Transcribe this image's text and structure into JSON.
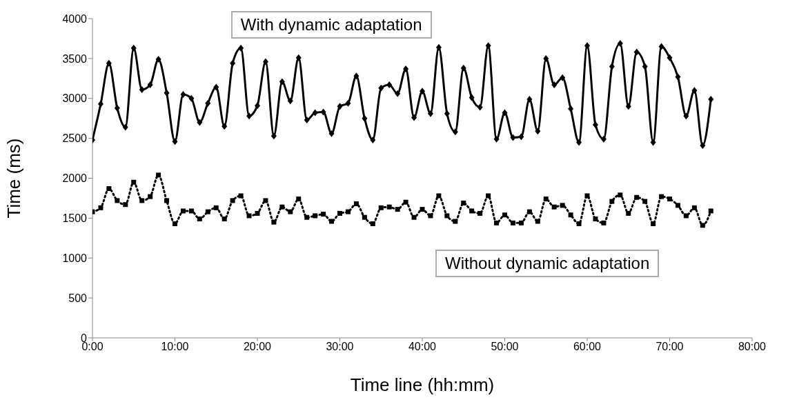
{
  "chart_data": {
    "type": "line",
    "xlabel": "Time line (hh:mm)",
    "ylabel": "Time (ms)",
    "x": [
      0,
      1,
      2,
      3,
      4,
      5,
      6,
      7,
      8,
      9,
      10,
      11,
      12,
      13,
      14,
      15,
      16,
      17,
      18,
      19,
      20,
      21,
      22,
      23,
      24,
      25,
      26,
      27,
      28,
      29,
      30,
      31,
      32,
      33,
      34,
      35,
      36,
      37,
      38,
      39,
      40,
      41,
      42,
      43,
      44,
      45,
      46,
      47,
      48,
      49,
      50,
      51,
      52,
      53,
      54,
      55,
      56,
      57,
      58,
      59,
      60,
      61,
      62,
      63,
      64,
      65,
      66,
      67,
      68,
      69,
      70,
      71,
      72,
      73,
      74,
      75
    ],
    "series": [
      {
        "name": "With dynamic adaptation",
        "color": "#000000",
        "marker": "diamond",
        "line_style": "solid",
        "values": [
          2480,
          2930,
          3440,
          2880,
          2640,
          3630,
          3110,
          3170,
          3490,
          3070,
          2460,
          3050,
          3000,
          2700,
          2940,
          3140,
          2650,
          3440,
          3630,
          2780,
          2910,
          3460,
          2530,
          3210,
          2970,
          3510,
          2730,
          2820,
          2830,
          2560,
          2900,
          2940,
          3280,
          2750,
          2480,
          3130,
          3170,
          3060,
          3370,
          2760,
          3090,
          2810,
          3640,
          2810,
          2580,
          3380,
          3010,
          2890,
          3660,
          2490,
          2820,
          2510,
          2520,
          2990,
          2590,
          3500,
          3170,
          3260,
          2870,
          2450,
          3660,
          2670,
          2490,
          3400,
          3690,
          2900,
          3580,
          3400,
          2450,
          3650,
          3510,
          3270,
          2780,
          3100,
          2410,
          2990
        ]
      },
      {
        "name": "Without dynamic adaptation",
        "color": "#000000",
        "marker": "square",
        "line_style": "dotted",
        "values": [
          1580,
          1630,
          1870,
          1720,
          1670,
          1950,
          1720,
          1770,
          2040,
          1720,
          1430,
          1590,
          1590,
          1490,
          1580,
          1630,
          1490,
          1720,
          1780,
          1530,
          1560,
          1720,
          1450,
          1640,
          1580,
          1740,
          1510,
          1530,
          1550,
          1460,
          1560,
          1580,
          1680,
          1510,
          1430,
          1630,
          1640,
          1610,
          1700,
          1510,
          1610,
          1530,
          1780,
          1530,
          1460,
          1690,
          1590,
          1560,
          1780,
          1440,
          1540,
          1440,
          1440,
          1580,
          1460,
          1740,
          1640,
          1660,
          1540,
          1430,
          1780,
          1490,
          1440,
          1710,
          1790,
          1560,
          1760,
          1710,
          1430,
          1770,
          1740,
          1660,
          1530,
          1630,
          1410,
          1590
        ]
      }
    ],
    "xlim": [
      0,
      80
    ],
    "xticks": [
      {
        "value": 0,
        "label": "0:00"
      },
      {
        "value": 10,
        "label": "10:00"
      },
      {
        "value": 20,
        "label": "20:00"
      },
      {
        "value": 30,
        "label": "30:00"
      },
      {
        "value": 40,
        "label": "40:00"
      },
      {
        "value": 50,
        "label": "50:00"
      },
      {
        "value": 60,
        "label": "60:00"
      },
      {
        "value": 70,
        "label": "70:00"
      },
      {
        "value": 80,
        "label": "80:00"
      }
    ],
    "ylim": [
      0,
      4000
    ],
    "yticks": [
      0,
      500,
      1000,
      1500,
      2000,
      2500,
      3000,
      3500,
      4000
    ],
    "grid": false,
    "legend": false
  }
}
